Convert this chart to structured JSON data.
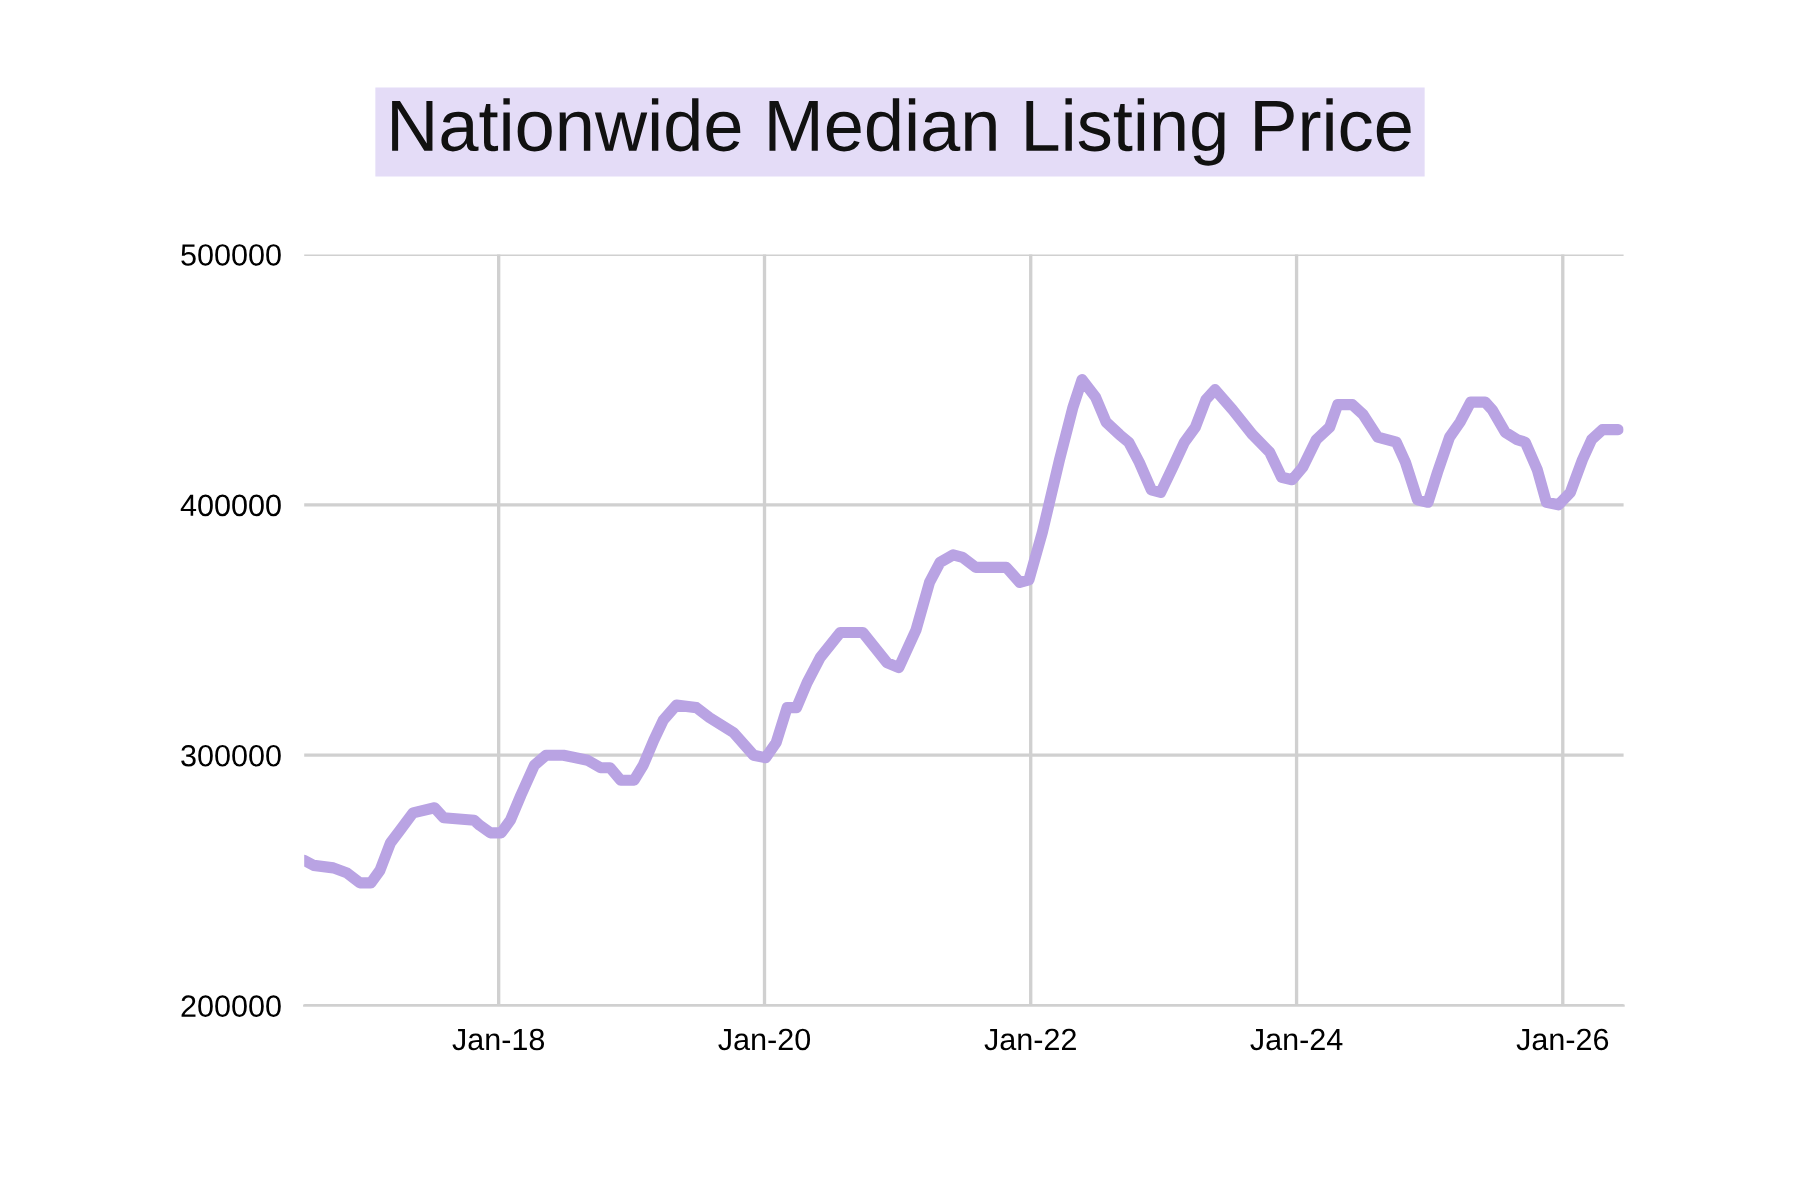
{
  "chart_data": {
    "type": "line",
    "title": "Nationwide Median Listing Price",
    "x": [
      "2016-07-16",
      "2016-08-11",
      "2016-10-04",
      "2016-11-10",
      "2016-12-16",
      "2017-01-15",
      "2017-02-09",
      "2017-03-10",
      "2017-04-05",
      "2017-05-11",
      "2017-07-09",
      "2017-08-03",
      "2017-10-26",
      "2017-11-10",
      "2017-12-09",
      "2018-01-08",
      "2018-02-02",
      "2018-03-03",
      "2018-04-09",
      "2018-05-11",
      "2018-06-28",
      "2018-09-02",
      "2018-10-08",
      "2018-11-03",
      "2018-12-02",
      "2019-01-08",
      "2019-02-02",
      "2019-03-03",
      "2019-03-29",
      "2019-05-04",
      "2019-06-28",
      "2019-08-03",
      "2019-10-08",
      "2019-12-02",
      "2020-01-04",
      "2020-02-02",
      "2020-03-03",
      "2020-03-29",
      "2020-04-27",
      "2020-06-02",
      "2020-07-27",
      "2020-09-27",
      "2020-12-02",
      "2021-01-04",
      "2021-02-20",
      "2021-03-29",
      "2021-04-27",
      "2021-06-02",
      "2021-06-28",
      "2021-08-03",
      "2021-10-26",
      "2021-12-02",
      "2021-12-27",
      "2022-02-02",
      "2022-03-21",
      "2022-04-27",
      "2022-05-22",
      "2022-06-28",
      "2022-07-27",
      "2022-09-02",
      "2022-09-27",
      "2022-10-26",
      "2022-11-28",
      "2022-12-24",
      "2023-01-26",
      "2023-02-27",
      "2023-03-29",
      "2023-04-27",
      "2023-05-22",
      "2023-07-09",
      "2023-09-02",
      "2023-10-19",
      "2023-11-21",
      "2023-12-20",
      "2024-01-18",
      "2024-02-24",
      "2024-04-01",
      "2024-04-23",
      "2024-06-02",
      "2024-07-02",
      "2024-08-11",
      "2024-10-01",
      "2024-10-26",
      "2024-11-28",
      "2024-12-27",
      "2025-01-22",
      "2025-02-24",
      "2025-03-25",
      "2025-04-23",
      "2025-06-02",
      "2025-06-21",
      "2025-07-27",
      "2025-08-29",
      "2025-09-20",
      "2025-10-23",
      "2025-11-17",
      "2025-12-20",
      "2026-01-22",
      "2026-02-24",
      "2026-03-21",
      "2026-04-20",
      "2026-06-02"
    ],
    "series": [
      {
        "color": "#b9a3e3",
        "values": [
          258000,
          256000,
          255000,
          253000,
          249000,
          249000,
          254000,
          265000,
          270000,
          277000,
          279000,
          275000,
          274000,
          272000,
          269000,
          269000,
          274000,
          284000,
          296000,
          300000,
          300000,
          298000,
          295000,
          295000,
          290000,
          290000,
          296000,
          306000,
          314000,
          320000,
          319000,
          315000,
          309000,
          300000,
          299000,
          305000,
          319000,
          319000,
          329000,
          339000,
          349000,
          349000,
          337000,
          335000,
          350000,
          369000,
          377000,
          380000,
          379000,
          375000,
          375000,
          369000,
          370000,
          389000,
          418000,
          439000,
          450000,
          443000,
          433000,
          428000,
          425000,
          417000,
          406000,
          405000,
          415000,
          425000,
          431000,
          442000,
          446000,
          438000,
          428000,
          421000,
          411000,
          410000,
          415000,
          426000,
          431000,
          440000,
          440000,
          436000,
          427000,
          425000,
          417000,
          402000,
          401000,
          413000,
          427000,
          433000,
          441000,
          441000,
          438000,
          429000,
          426000,
          425000,
          414000,
          401000,
          400000,
          405000,
          418000,
          426000,
          430000,
          430000
        ]
      }
    ],
    "xlim": [
      "2016-07-16",
      "2026-06-17"
    ],
    "xticks": [
      {
        "value": "2018-01-01",
        "label": "Jan-18"
      },
      {
        "value": "2020-01-01",
        "label": "Jan-20"
      },
      {
        "value": "2022-01-01",
        "label": "Jan-22"
      },
      {
        "value": "2024-01-01",
        "label": "Jan-24"
      },
      {
        "value": "2026-01-01",
        "label": "Jan-26"
      }
    ],
    "ylim": [
      200000,
      500000
    ],
    "yticks": [
      200000,
      300000,
      400000,
      500000
    ],
    "grid": true,
    "line_style": "solid",
    "marker": "none"
  }
}
